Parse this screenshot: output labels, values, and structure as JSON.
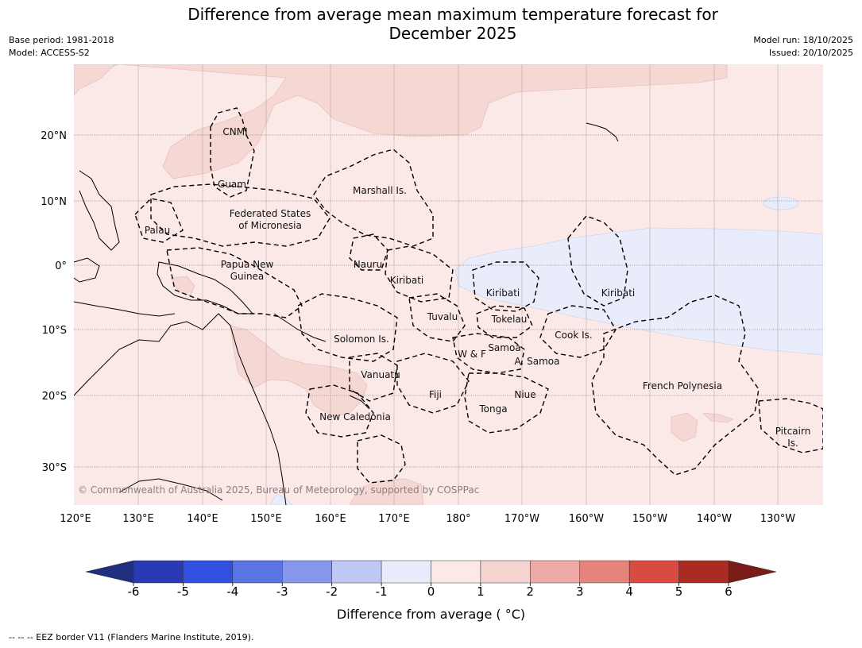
{
  "title_line1": "Difference from average mean maximum temperature forecast for",
  "title_line2": "December 2025",
  "base_period": "Base period: 1981-2018",
  "model": "Model: ACCESS-S2",
  "model_run": "Model run: 18/10/2025",
  "issued": "Issued: 20/10/2025",
  "copyright": "© Commonwealth of Australia 2025, Bureau of Meteorology, supported by COSPPac",
  "footnote": "--  --  -- EEZ border V11 (Flanders Marine Institute, 2019).",
  "colorbar": {
    "label": "Difference from average ( °C)",
    "ticks": [
      "-6",
      "-5",
      "-4",
      "-3",
      "-2",
      "-1",
      "0",
      "1",
      "2",
      "3",
      "4",
      "5",
      "6"
    ],
    "colors": [
      "#2a3ab5",
      "#3150e0",
      "#5a74e4",
      "#8696ec",
      "#c0c8f4",
      "#e8ecfb",
      "#fbe9e7",
      "#f5d3d0",
      "#eeaaa6",
      "#e6837d",
      "#d94a40",
      "#ab2a22"
    ],
    "under_color": "#1f2e7e",
    "over_color": "#7a1c17"
  },
  "lon_labels": [
    "120°E",
    "130°E",
    "140°E",
    "150°E",
    "160°E",
    "170°E",
    "180°",
    "170°W",
    "160°W",
    "150°W",
    "140°W",
    "130°W"
  ],
  "lat_labels": [
    "20°N",
    "10°N",
    "0°",
    "10°S",
    "20°S",
    "30°S"
  ],
  "regions": {
    "cnmi": "CNMI",
    "guam": "Guam",
    "marshall": "Marshall Is.",
    "fsm1": "Federated States",
    "fsm2": "of Micronesia",
    "palau": "Palau",
    "png1": "Papua New",
    "png2": "Guinea",
    "nauru": "Nauru",
    "kiribati_w": "Kiribati",
    "kiribati_c": "Kiribati",
    "kiribati_e": "Kiribati",
    "tuvalu": "Tuvalu",
    "tokelau": "Tokelau",
    "cook": "Cook Is.",
    "solomon": "Solomon Is.",
    "samoa": "Samoa",
    "wf": "W & F",
    "asamoa": "A. Samoa",
    "vanuatu": "Vanuatu",
    "fiji": "Fiji",
    "niue": "Niue",
    "frpoly": "French Polynesia",
    "tonga": "Tonga",
    "newcal": "New Caledonia",
    "pitcairn1": "Pitcairn",
    "pitcairn2": "Is."
  },
  "anomaly_areas": [
    {
      "name": "north-pacific-warm-band",
      "level": "1 to 2"
    },
    {
      "name": "new-guinea-coral-sea-warm",
      "level": "1 to 2"
    },
    {
      "name": "central-pacific-cool-tongue",
      "level": "-1 to 0"
    }
  ]
}
